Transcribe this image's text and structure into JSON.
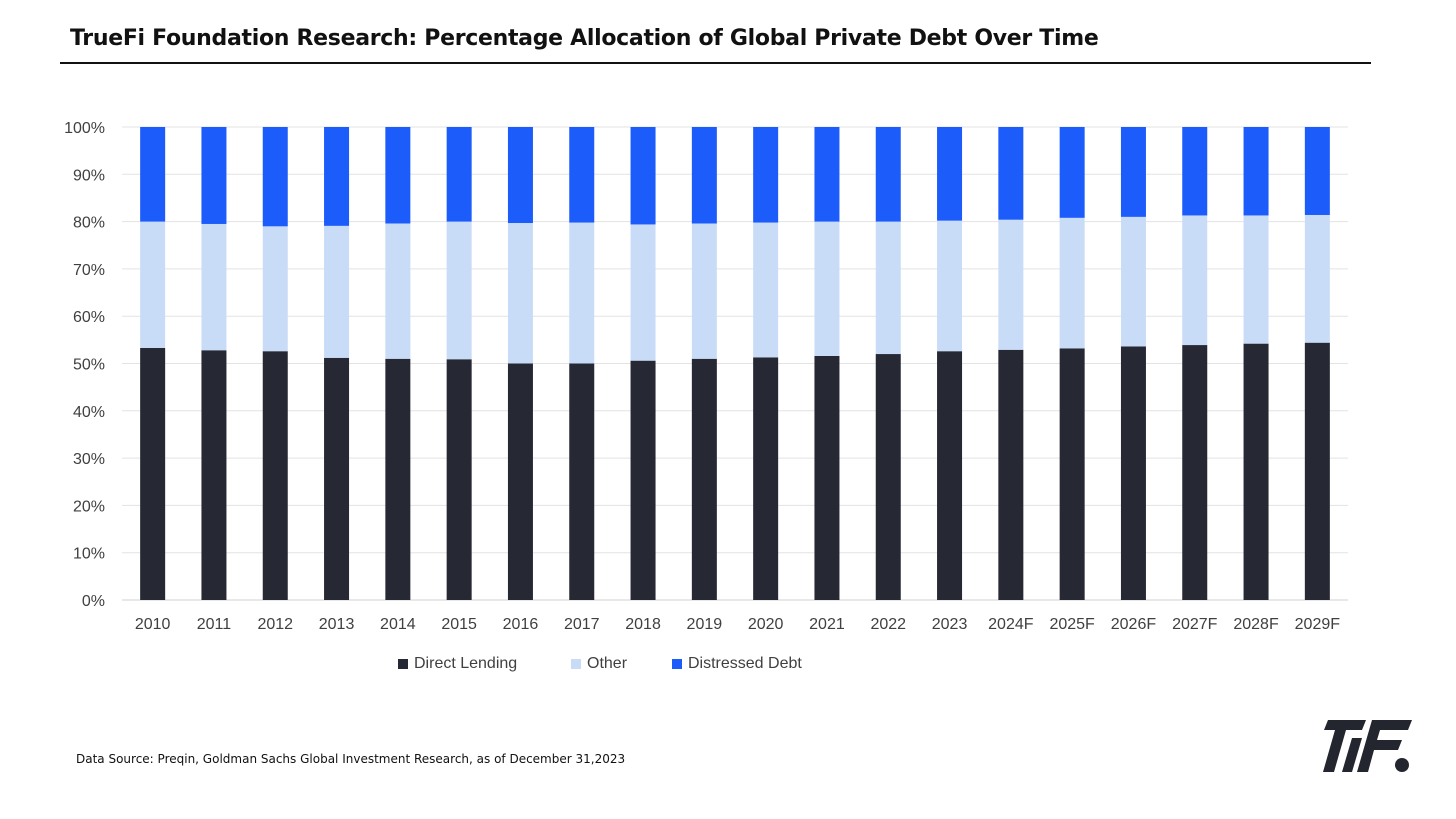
{
  "header": {
    "title": "TrueFi Foundation Research: Percentage Allocation of Global Private Debt Over Time"
  },
  "footer": {
    "source": "Data Source: Preqin, Goldman Sachs Global Investment Research, as of December 31,2023"
  },
  "logo": {
    "icon": "truefi-logo-icon",
    "color": "#23252f"
  },
  "legend_labels": [
    "Direct Lending",
    "Other",
    "Distressed Debt"
  ],
  "chart_data": {
    "type": "bar",
    "stacked": true,
    "title": "TrueFi Foundation Research: Percentage Allocation of Global Private Debt Over Time",
    "xlabel": "",
    "ylabel": "",
    "ylim": [
      0,
      100
    ],
    "y_ticks": [
      "0%",
      "10%",
      "20%",
      "30%",
      "40%",
      "50%",
      "60%",
      "70%",
      "80%",
      "90%",
      "100%"
    ],
    "grid": true,
    "legend_position": "bottom",
    "categories": [
      "2010",
      "2011",
      "2012",
      "2013",
      "2014",
      "2015",
      "2016",
      "2017",
      "2018",
      "2019",
      "2020",
      "2021",
      "2022",
      "2023",
      "2024F",
      "2025F",
      "2026F",
      "2027F",
      "2028F",
      "2029F"
    ],
    "series": [
      {
        "name": "Direct Lending",
        "color": "#262833",
        "values": [
          53.3,
          52.8,
          52.6,
          51.2,
          51.0,
          50.9,
          50.0,
          50.0,
          50.6,
          51.0,
          51.3,
          51.6,
          52.0,
          52.6,
          52.9,
          53.2,
          53.6,
          53.9,
          54.2,
          54.4
        ]
      },
      {
        "name": "Other",
        "color": "#c9dcf7",
        "values": [
          26.7,
          26.7,
          26.4,
          27.9,
          28.6,
          29.1,
          29.7,
          29.8,
          28.8,
          28.6,
          28.5,
          28.4,
          28.0,
          27.6,
          27.5,
          27.6,
          27.4,
          27.4,
          27.1,
          27.0
        ]
      },
      {
        "name": "Distressed Debt",
        "color": "#1c5cfb",
        "values": [
          20.0,
          20.5,
          21.0,
          20.9,
          20.4,
          20.0,
          20.3,
          20.2,
          20.6,
          20.4,
          20.2,
          20.0,
          20.0,
          19.8,
          19.6,
          19.2,
          19.0,
          18.7,
          18.7,
          18.6
        ]
      }
    ]
  }
}
